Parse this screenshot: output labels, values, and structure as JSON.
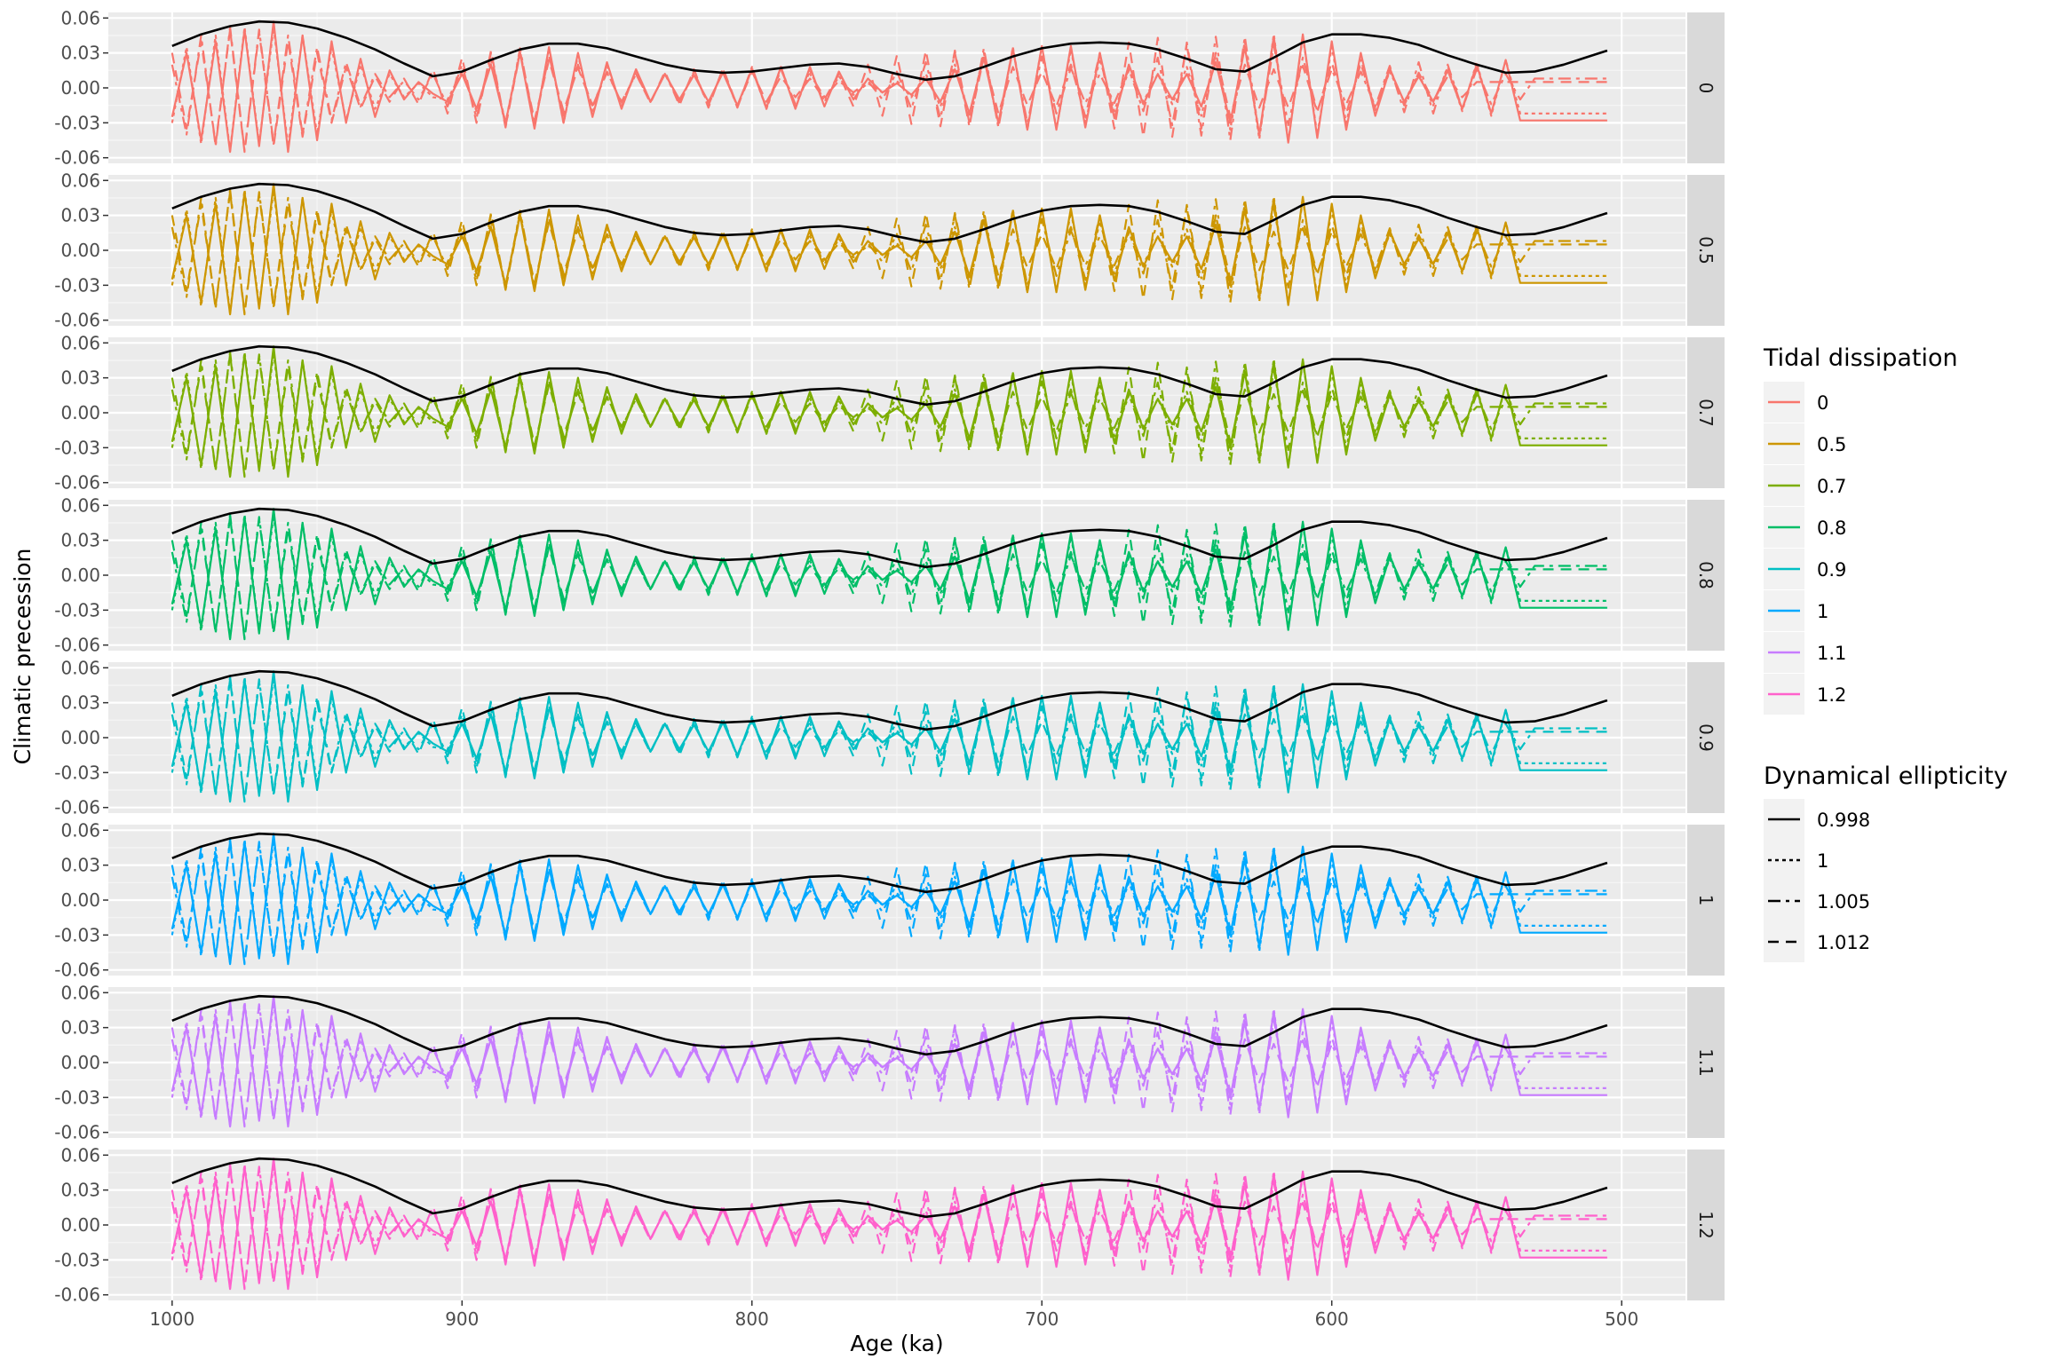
{
  "chart_data": {
    "type": "line",
    "xlabel": "Age (ka)",
    "ylabel": "Climatic precession",
    "xlim": [
      1000,
      500
    ],
    "x_reversed": true,
    "xticks": [
      1000,
      900,
      800,
      700,
      600,
      500
    ],
    "xtick_labels": [
      "1000",
      "900",
      "800",
      "700",
      "600",
      "500"
    ],
    "ylim": [
      -0.06,
      0.06
    ],
    "yticks": [
      -0.06,
      -0.03,
      0.0,
      0.03,
      0.06
    ],
    "ytick_labels": [
      "-0.06",
      "-0.03",
      "0.00",
      "0.03",
      "0.06"
    ],
    "grid": true,
    "facet_by": "Tidal dissipation",
    "facets": [
      "0",
      "0.5",
      "0.7",
      "0.8",
      "0.9",
      "1",
      "1.1",
      "1.2"
    ],
    "facet_colors": [
      "#F8766D",
      "#CD9600",
      "#7CAE00",
      "#00BE67",
      "#00BFC4",
      "#00A9FF",
      "#C77CFF",
      "#FF61CC"
    ],
    "envelope": {
      "color": "#000000",
      "x": [
        1000,
        990,
        980,
        970,
        960,
        950,
        940,
        930,
        920,
        910,
        900,
        890,
        880,
        870,
        860,
        850,
        840,
        830,
        820,
        810,
        800,
        790,
        780,
        770,
        760,
        750,
        740,
        730,
        720,
        710,
        700,
        690,
        680,
        670,
        660,
        650,
        640,
        630,
        620,
        610,
        600,
        590,
        580,
        570,
        560,
        550,
        540,
        530,
        520,
        505
      ],
      "y": [
        0.036,
        0.046,
        0.053,
        0.057,
        0.056,
        0.051,
        0.043,
        0.033,
        0.021,
        0.01,
        0.014,
        0.024,
        0.033,
        0.038,
        0.038,
        0.034,
        0.027,
        0.02,
        0.015,
        0.013,
        0.014,
        0.017,
        0.02,
        0.021,
        0.018,
        0.012,
        0.007,
        0.01,
        0.018,
        0.027,
        0.034,
        0.038,
        0.039,
        0.038,
        0.033,
        0.025,
        0.016,
        0.014,
        0.026,
        0.039,
        0.046,
        0.046,
        0.043,
        0.037,
        0.028,
        0.02,
        0.013,
        0.014,
        0.02,
        0.032
      ]
    },
    "series": [
      {
        "name": "0.998",
        "dash": "solid",
        "x": [
          1000,
          995,
          990,
          985,
          980,
          975,
          970,
          965,
          960,
          955,
          950,
          945,
          940,
          935,
          930,
          925,
          920,
          915,
          910,
          905,
          900,
          895,
          890,
          885,
          880,
          875,
          870,
          865,
          860,
          855,
          850,
          845,
          840,
          835,
          830,
          825,
          820,
          815,
          810,
          805,
          800,
          795,
          790,
          785,
          780,
          775,
          770,
          765,
          760,
          755,
          750,
          745,
          740,
          735,
          730,
          725,
          720,
          715,
          710,
          705,
          700,
          695,
          690,
          685,
          680,
          675,
          670,
          665,
          660,
          655,
          650,
          645,
          640,
          635,
          630,
          625,
          620,
          615,
          610,
          605,
          600,
          595,
          590,
          585,
          580,
          575,
          570,
          565,
          560,
          555,
          550,
          545,
          540,
          535,
          530,
          525,
          520,
          515,
          510,
          505
        ],
        "y": [
          -0.025,
          0.03,
          -0.045,
          0.04,
          -0.055,
          0.05,
          -0.05,
          0.057,
          -0.055,
          0.045,
          -0.045,
          0.04,
          -0.03,
          0.025,
          -0.025,
          0.015,
          -0.01,
          0.005,
          -0.005,
          -0.012,
          0.012,
          -0.018,
          0.02,
          -0.03,
          0.03,
          -0.035,
          0.035,
          -0.03,
          0.03,
          -0.025,
          0.022,
          -0.018,
          0.016,
          -0.012,
          0.012,
          -0.01,
          0.011,
          -0.012,
          0.013,
          -0.015,
          0.016,
          -0.017,
          0.018,
          -0.018,
          0.018,
          -0.016,
          0.014,
          -0.01,
          0.008,
          -0.004,
          0.004,
          -0.006,
          0.008,
          -0.012,
          0.016,
          -0.022,
          0.026,
          -0.03,
          0.034,
          -0.036,
          0.036,
          -0.036,
          0.036,
          -0.034,
          0.03,
          -0.026,
          0.02,
          -0.014,
          0.012,
          -0.01,
          0.012,
          -0.016,
          0.022,
          -0.03,
          0.035,
          -0.04,
          0.044,
          -0.047,
          0.046,
          -0.043,
          0.04,
          -0.036,
          0.03,
          -0.024,
          0.016,
          -0.012,
          0.01,
          -0.012,
          0.015,
          -0.018,
          0.02,
          -0.022,
          0.024,
          -0.028,
          -0.028,
          -0.028,
          -0.028,
          -0.028,
          -0.028,
          -0.028
        ]
      },
      {
        "name": "1",
        "dash": "dotted",
        "x": [
          1000,
          995,
          990,
          985,
          980,
          975,
          970,
          965,
          960,
          955,
          950,
          945,
          940,
          935,
          930,
          925,
          920,
          915,
          910,
          905,
          900,
          895,
          890,
          885,
          880,
          875,
          870,
          865,
          860,
          855,
          850,
          845,
          840,
          835,
          830,
          825,
          820,
          815,
          810,
          805,
          800,
          795,
          790,
          785,
          780,
          775,
          770,
          765,
          760,
          755,
          750,
          745,
          740,
          735,
          730,
          725,
          720,
          715,
          710,
          705,
          700,
          695,
          690,
          685,
          680,
          675,
          670,
          665,
          660,
          655,
          650,
          645,
          640,
          635,
          630,
          625,
          620,
          615,
          610,
          605,
          600,
          595,
          590,
          585,
          580,
          575,
          570,
          565,
          560,
          555,
          550,
          545,
          540,
          535,
          530,
          525,
          520,
          515,
          510,
          505
        ],
        "y": [
          -0.03,
          0.035,
          -0.048,
          0.045,
          -0.054,
          0.052,
          -0.048,
          0.052,
          -0.05,
          0.045,
          -0.04,
          0.035,
          -0.028,
          0.02,
          -0.018,
          0.012,
          -0.008,
          0.004,
          -0.008,
          -0.01,
          0.014,
          -0.02,
          0.024,
          -0.03,
          0.032,
          -0.034,
          0.034,
          -0.03,
          0.028,
          -0.022,
          0.02,
          -0.016,
          0.014,
          -0.012,
          0.012,
          -0.012,
          0.013,
          -0.014,
          0.015,
          -0.016,
          0.017,
          -0.018,
          0.018,
          -0.017,
          0.015,
          -0.012,
          0.01,
          -0.006,
          0.004,
          -0.004,
          0.006,
          -0.008,
          0.012,
          -0.016,
          0.02,
          -0.025,
          0.03,
          -0.033,
          0.035,
          -0.036,
          0.036,
          -0.035,
          0.033,
          -0.03,
          0.025,
          -0.02,
          0.015,
          -0.012,
          0.012,
          -0.014,
          0.018,
          -0.024,
          0.03,
          -0.036,
          0.04,
          -0.044,
          0.046,
          -0.046,
          0.044,
          -0.04,
          0.035,
          -0.03,
          0.024,
          -0.018,
          0.014,
          -0.012,
          0.012,
          -0.015,
          0.018,
          -0.02,
          0.022,
          -0.024,
          0.024,
          -0.022,
          -0.022,
          -0.022,
          -0.022,
          -0.022,
          -0.022,
          -0.022
        ]
      },
      {
        "name": "1.005",
        "dash": "dashdot",
        "x": [
          1000,
          995,
          990,
          985,
          980,
          975,
          970,
          965,
          960,
          955,
          950,
          945,
          940,
          935,
          930,
          925,
          920,
          915,
          910,
          905,
          900,
          895,
          890,
          885,
          880,
          875,
          870,
          865,
          860,
          855,
          850,
          845,
          840,
          835,
          830,
          825,
          820,
          815,
          810,
          805,
          800,
          795,
          790,
          785,
          780,
          775,
          770,
          765,
          760,
          755,
          750,
          745,
          740,
          735,
          730,
          725,
          720,
          715,
          710,
          705,
          700,
          695,
          690,
          685,
          680,
          675,
          670,
          665,
          660,
          655,
          650,
          645,
          640,
          635,
          630,
          625,
          620,
          615,
          610,
          605,
          600,
          595,
          590,
          585,
          580,
          575,
          570,
          565,
          560,
          555,
          550,
          545,
          540,
          535,
          530,
          525,
          520,
          515,
          510,
          505
        ],
        "y": [
          0.02,
          -0.04,
          0.045,
          -0.05,
          0.052,
          -0.054,
          0.05,
          -0.048,
          0.045,
          -0.04,
          0.035,
          -0.028,
          0.022,
          -0.016,
          0.012,
          -0.008,
          0.006,
          -0.01,
          0.012,
          -0.016,
          0.02,
          -0.026,
          0.03,
          -0.034,
          0.034,
          -0.032,
          0.028,
          -0.024,
          0.02,
          -0.016,
          0.014,
          -0.013,
          0.012,
          -0.012,
          0.012,
          -0.013,
          0.014,
          -0.015,
          0.016,
          -0.017,
          0.018,
          -0.018,
          0.016,
          -0.014,
          0.012,
          -0.008,
          0.006,
          -0.004,
          0.006,
          -0.01,
          0.014,
          -0.018,
          0.022,
          -0.026,
          0.03,
          -0.033,
          0.034,
          -0.034,
          0.033,
          -0.03,
          0.027,
          -0.022,
          0.017,
          -0.013,
          0.012,
          -0.013,
          0.016,
          -0.02,
          0.026,
          -0.032,
          0.037,
          -0.041,
          0.044,
          -0.045,
          0.044,
          -0.041,
          0.037,
          -0.032,
          0.026,
          -0.02,
          0.016,
          -0.014,
          0.014,
          -0.016,
          0.019,
          -0.021,
          0.022,
          -0.022,
          0.02,
          -0.018,
          0.016,
          -0.014,
          0.012,
          -0.01,
          0.008,
          0.008,
          0.008,
          0.008,
          0.008,
          0.008
        ]
      },
      {
        "name": "1.012",
        "dash": "dashed",
        "x": [
          1000,
          995,
          990,
          985,
          980,
          975,
          970,
          965,
          960,
          955,
          950,
          945,
          940,
          935,
          930,
          925,
          920,
          915,
          910,
          905,
          900,
          895,
          890,
          885,
          880,
          875,
          870,
          865,
          860,
          855,
          850,
          845,
          840,
          835,
          830,
          825,
          820,
          815,
          810,
          805,
          800,
          795,
          790,
          785,
          780,
          775,
          770,
          765,
          760,
          755,
          750,
          745,
          740,
          735,
          730,
          725,
          720,
          715,
          710,
          705,
          700,
          695,
          690,
          685,
          680,
          675,
          670,
          665,
          660,
          655,
          650,
          645,
          640,
          635,
          630,
          625,
          620,
          615,
          610,
          605,
          600,
          595,
          590,
          585,
          580,
          575,
          570,
          565,
          560,
          555,
          550,
          545,
          540,
          535,
          530,
          525,
          520,
          515,
          510,
          505
        ],
        "y": [
          0.03,
          -0.035,
          0.04,
          -0.048,
          0.05,
          -0.055,
          0.048,
          -0.05,
          0.04,
          -0.042,
          0.03,
          -0.03,
          0.018,
          -0.018,
          0.01,
          -0.012,
          0.008,
          -0.014,
          0.016,
          -0.022,
          0.026,
          -0.03,
          0.032,
          -0.033,
          0.03,
          -0.028,
          0.024,
          -0.02,
          0.017,
          -0.015,
          0.013,
          -0.012,
          0.012,
          -0.013,
          0.014,
          -0.015,
          0.016,
          -0.017,
          0.017,
          -0.016,
          0.014,
          -0.012,
          0.01,
          -0.008,
          0.008,
          -0.01,
          0.012,
          -0.016,
          0.02,
          -0.024,
          0.028,
          -0.031,
          0.032,
          -0.033,
          0.032,
          -0.03,
          0.026,
          -0.022,
          0.018,
          -0.015,
          0.014,
          -0.016,
          0.02,
          -0.025,
          0.03,
          -0.035,
          0.039,
          -0.042,
          0.043,
          -0.042,
          0.039,
          -0.035,
          0.03,
          -0.025,
          0.02,
          -0.017,
          0.016,
          -0.017,
          0.019,
          -0.021,
          0.022,
          -0.022,
          0.021,
          -0.019,
          0.017,
          -0.015,
          0.013,
          -0.011,
          0.01,
          -0.008,
          0.005,
          0.005,
          0.005,
          0.005,
          0.005,
          0.005,
          0.005,
          0.005,
          0.005,
          0.005
        ]
      }
    ],
    "legends": [
      {
        "title": "Tidal dissipation",
        "keys": [
          "0",
          "0.5",
          "0.7",
          "0.8",
          "0.9",
          "1",
          "1.1",
          "1.2"
        ]
      },
      {
        "title": "Dynamical ellipticity",
        "keys": [
          "0.998",
          "1",
          "1.005",
          "1.012"
        ]
      }
    ],
    "legend_position": "right"
  }
}
